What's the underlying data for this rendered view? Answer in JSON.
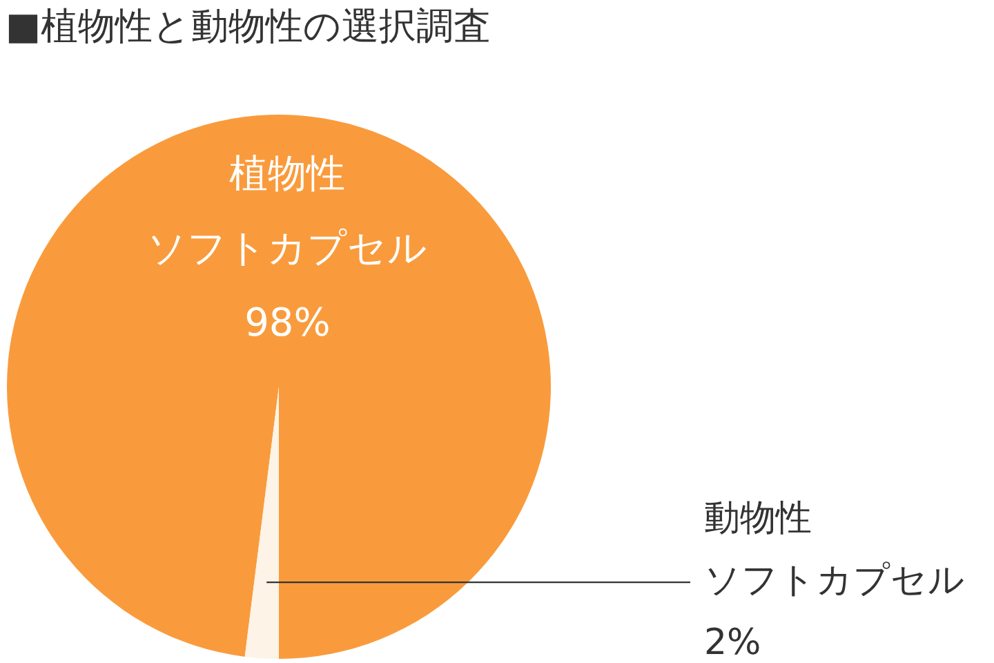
{
  "chart_data": {
    "type": "pie",
    "title": "■植物性と動物性の選択調査",
    "categories": [
      "植物性ソフトカプセル",
      "動物性ソフトカプセル"
    ],
    "values": [
      98,
      2
    ],
    "colors": [
      "#f99b3c",
      "#fdf3e6"
    ],
    "value_labels": [
      "98%",
      "2%"
    ],
    "legend": false
  }
}
